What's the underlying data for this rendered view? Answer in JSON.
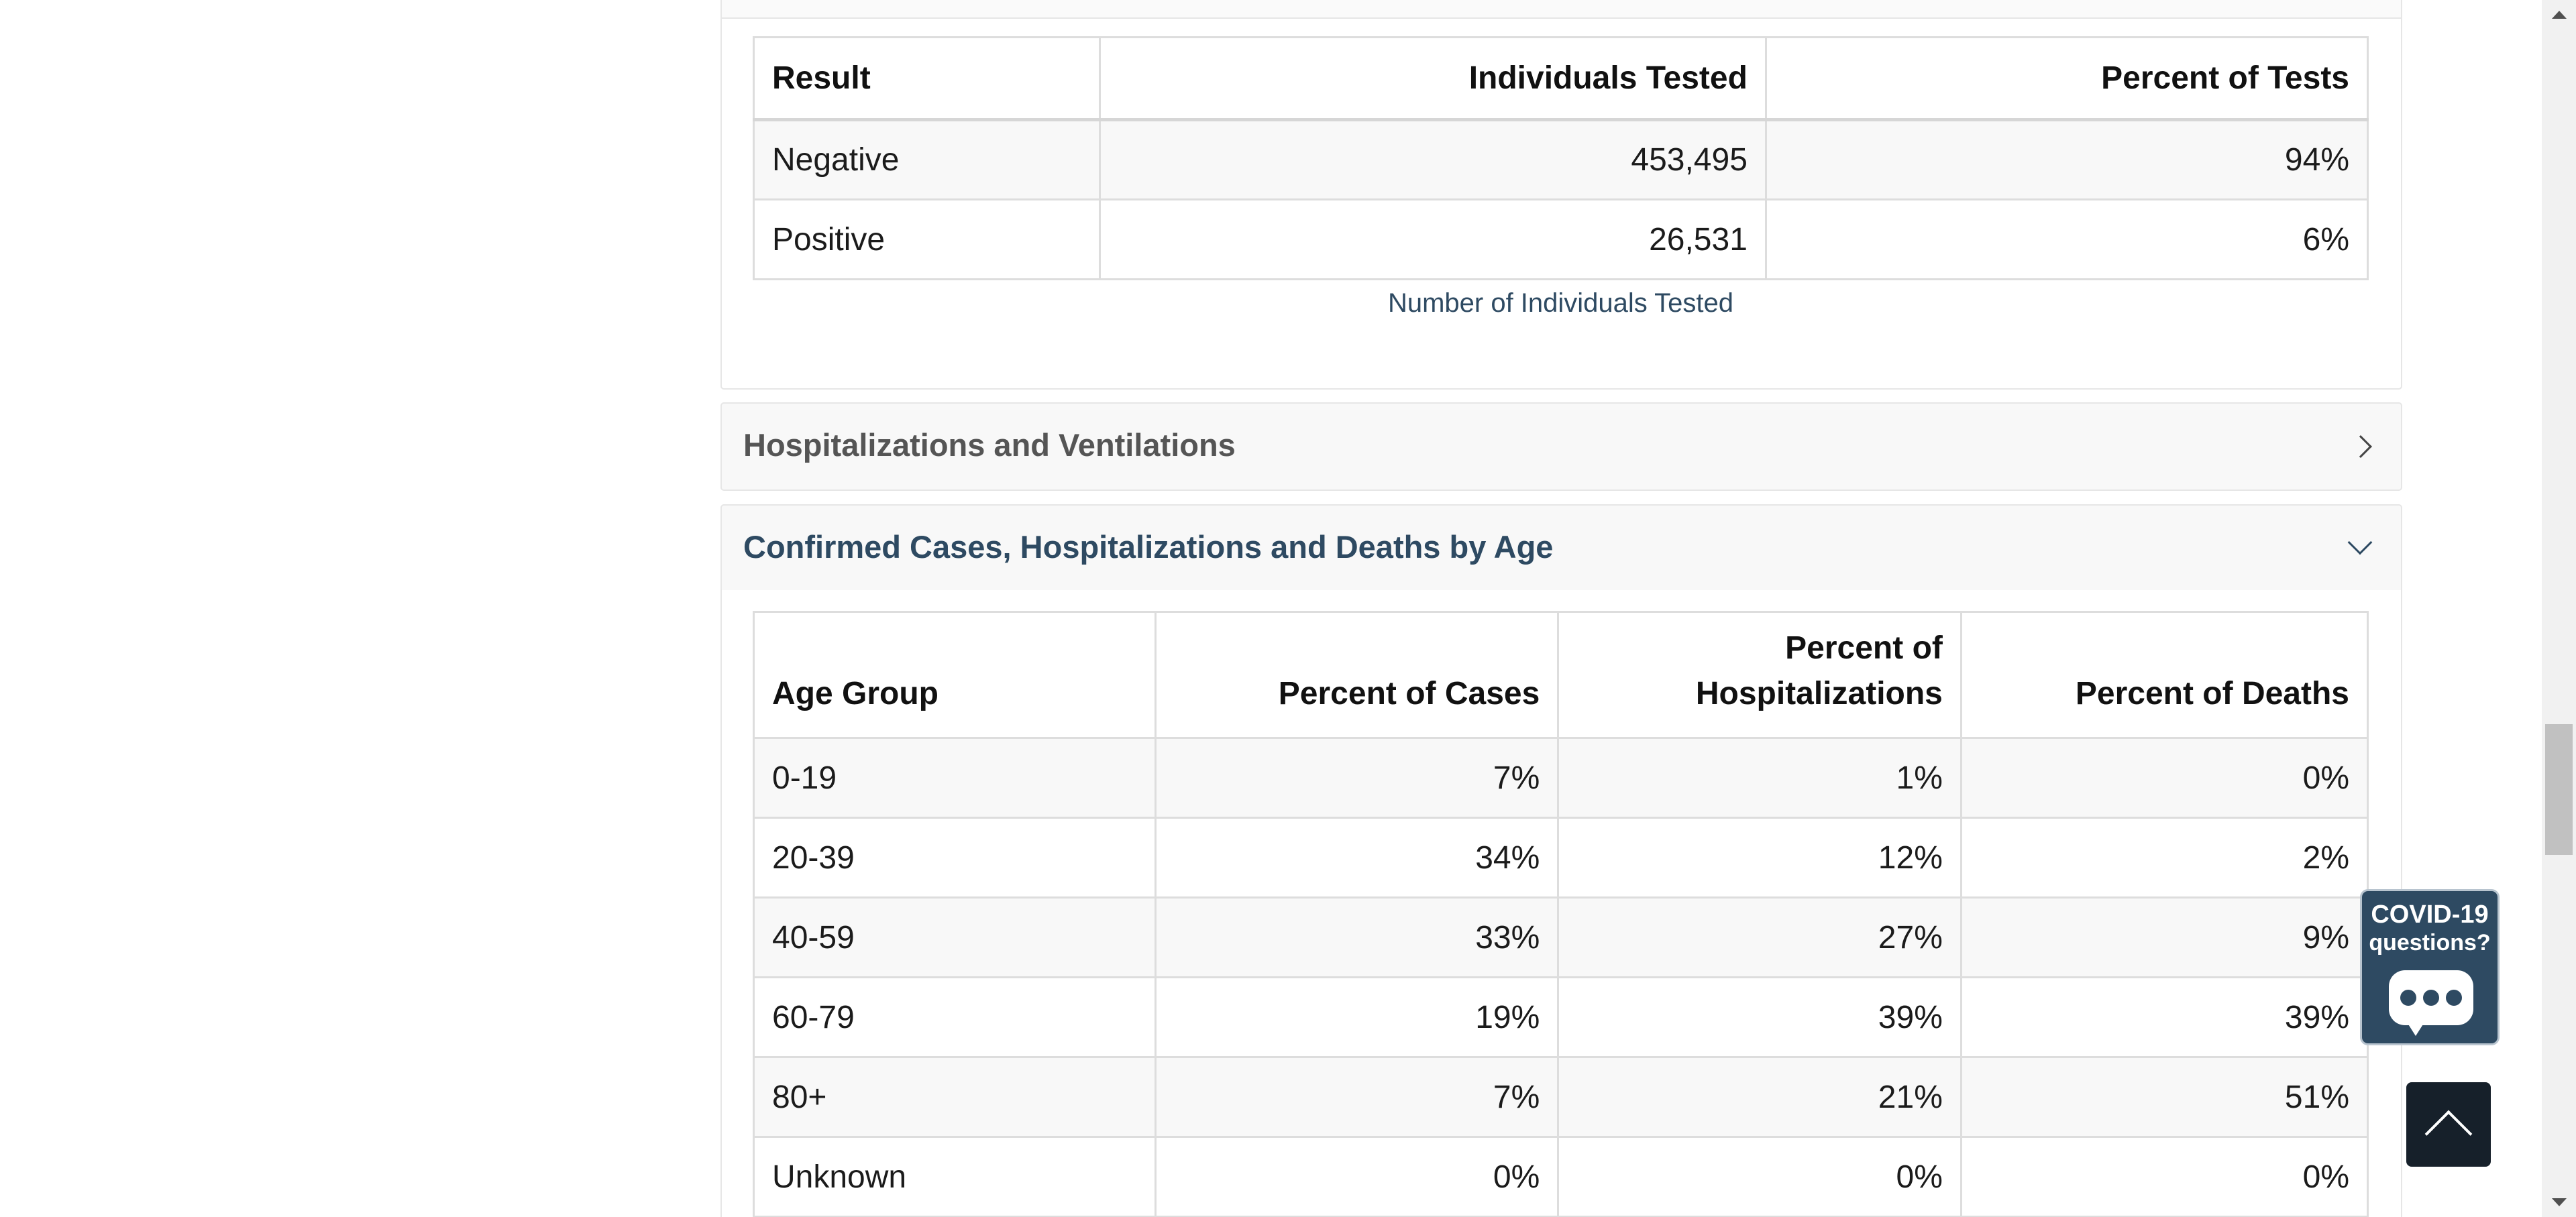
{
  "testing_table": {
    "headers": [
      "Result",
      "Individuals Tested",
      "Percent of Tests"
    ],
    "rows": [
      [
        "Negative",
        "453,495",
        "94%"
      ],
      [
        "Positive",
        "26,531",
        "6%"
      ]
    ],
    "caption": "Number of Individuals Tested"
  },
  "accordions": {
    "hospitalizations": {
      "title": "Hospitalizations and Ventilations",
      "state": "collapsed"
    },
    "by_age": {
      "title": "Confirmed Cases, Hospitalizations and Deaths by Age",
      "state": "expanded"
    }
  },
  "age_table": {
    "headers": [
      "Age Group",
      "Percent of Cases",
      "Percent of Hospitalizations",
      "Percent of Deaths"
    ],
    "header_lines": {
      "hospitalizations_line1": "Percent of",
      "hospitalizations_line2": "Hospitalizations"
    },
    "rows": [
      [
        "0-19",
        "7%",
        "1%",
        "0%"
      ],
      [
        "20-39",
        "34%",
        "12%",
        "2%"
      ],
      [
        "40-59",
        "33%",
        "27%",
        "9%"
      ],
      [
        "60-79",
        "19%",
        "39%",
        "39%"
      ],
      [
        "80+",
        "7%",
        "21%",
        "51%"
      ],
      [
        "Unknown",
        "0%",
        "0%",
        "0%"
      ]
    ]
  },
  "covid_widget": {
    "line1": "COVID-19",
    "line2": "questions?"
  },
  "icons": {
    "hospitalizations_toggle": "chevron-right-icon",
    "age_toggle": "chevron-down-icon",
    "back_to_top": "chevron-up-icon",
    "chat": "chat-bubble-icon"
  },
  "colors": {
    "accent": "#2e4a62",
    "back_to_top_bg": "#16202a",
    "row_stripe": "#f8f8f8",
    "border": "#dddddd"
  }
}
